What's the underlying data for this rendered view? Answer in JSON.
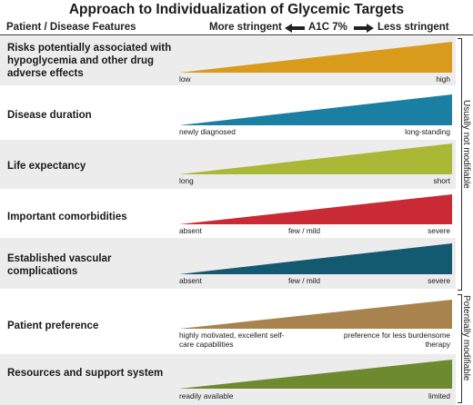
{
  "title": "Approach to Individualization of Glycemic Targets",
  "header": {
    "left": "Patient / Disease Features",
    "more": "More stringent",
    "a1c": "A1C 7%",
    "less": "Less stringent"
  },
  "groups": {
    "not_modifiable": "Usually not modifiable",
    "modifiable": "Potentially modifiable"
  },
  "rows": [
    {
      "label": "Risks potentially associated with hypoglycemia and other drug adverse effects",
      "color": "#d99b1c",
      "scale": [
        "low",
        "high"
      ]
    },
    {
      "label": "Disease duration",
      "color": "#1a7fa3",
      "scale": [
        "newly diagnosed",
        "long-standing"
      ]
    },
    {
      "label": "Life expectancy",
      "color": "#a9b936",
      "scale": [
        "long",
        "short"
      ]
    },
    {
      "label": "Important comorbidities",
      "color": "#c92a35",
      "scale": [
        "absent",
        "few / mild",
        "severe"
      ]
    },
    {
      "label": "Established vascular complications",
      "color": "#135a70",
      "scale": [
        "absent",
        "few / mild",
        "severe"
      ]
    },
    {
      "label": "Patient preference",
      "color": "#a8834d",
      "scale": [
        "highly motivated, excellent self-care capabilities",
        "preference for less burdensome therapy"
      ]
    },
    {
      "label": "Resources and support system",
      "color": "#6e8a2e",
      "scale": [
        "readily available",
        "limited"
      ]
    }
  ]
}
